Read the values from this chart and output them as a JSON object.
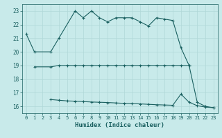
{
  "xlabel": "Humidex (Indice chaleur)",
  "bg_color": "#c8eaea",
  "grid_color": "#b0d8d8",
  "line_color": "#1a6060",
  "xlim": [
    -0.5,
    23.5
  ],
  "ylim": [
    15.5,
    23.5
  ],
  "yticks": [
    16,
    17,
    18,
    19,
    20,
    21,
    22,
    23
  ],
  "xticks": [
    0,
    1,
    2,
    3,
    4,
    5,
    6,
    7,
    8,
    9,
    10,
    11,
    12,
    13,
    14,
    15,
    16,
    17,
    18,
    19,
    20,
    21,
    22,
    23
  ],
  "line1_x": [
    0,
    1,
    3,
    4,
    6,
    7,
    8,
    9,
    10,
    11,
    12,
    13,
    14,
    15,
    16,
    17,
    18,
    19,
    20,
    21,
    22,
    23
  ],
  "line1_y": [
    21.3,
    20.0,
    20.0,
    21.0,
    23.0,
    22.5,
    23.0,
    22.5,
    22.2,
    22.5,
    22.5,
    22.5,
    22.2,
    21.9,
    22.5,
    22.4,
    22.3,
    20.3,
    19.0,
    16.3,
    16.0,
    15.9
  ],
  "line2_x": [
    1,
    3,
    4,
    5,
    6,
    7,
    8,
    9,
    10,
    11,
    12,
    13,
    14,
    15,
    16,
    17,
    18,
    19,
    20
  ],
  "line2_y": [
    18.9,
    18.9,
    19.0,
    19.0,
    19.0,
    19.0,
    19.0,
    19.0,
    19.0,
    19.0,
    19.0,
    19.0,
    19.0,
    19.0,
    19.0,
    19.0,
    19.0,
    19.0,
    19.0
  ],
  "line3_x": [
    3,
    4,
    5,
    6,
    7,
    8,
    9,
    10,
    11,
    12,
    13,
    14,
    15,
    16,
    17,
    18,
    19,
    20,
    21,
    22,
    23
  ],
  "line3_y": [
    16.5,
    16.45,
    16.4,
    16.38,
    16.35,
    16.32,
    16.3,
    16.28,
    16.25,
    16.22,
    16.2,
    16.18,
    16.15,
    16.12,
    16.1,
    16.08,
    16.9,
    16.3,
    16.05,
    15.95,
    15.9
  ]
}
